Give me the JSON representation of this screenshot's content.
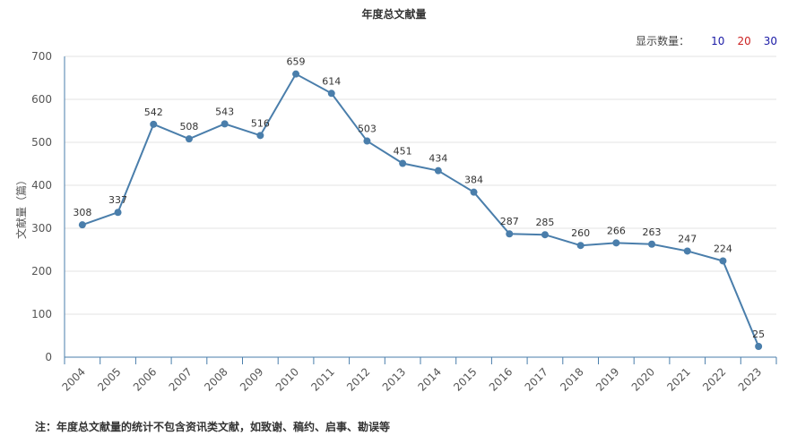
{
  "title": "年度总文献量",
  "count_selector": {
    "label": "显示数量：",
    "options": [
      {
        "label": "10",
        "color": "#1a1aa6"
      },
      {
        "label": "20",
        "color": "#cc2222"
      },
      {
        "label": "30",
        "color": "#1a1aa6"
      }
    ]
  },
  "note": "注：年度总文献量的统计不包含资讯类文献，如致谢、稿约、启事、勘误等",
  "chart_data": {
    "type": "line",
    "title": "年度总文献量",
    "xlabel": "",
    "ylabel": "文献量（篇）",
    "ylim": [
      0,
      700
    ],
    "yticks": [
      0,
      100,
      200,
      300,
      400,
      500,
      600,
      700
    ],
    "grid": true,
    "line_color": "#4a7eab",
    "x": [
      "2004",
      "2005",
      "2006",
      "2007",
      "2008",
      "2009",
      "2010",
      "2011",
      "2012",
      "2013",
      "2014",
      "2015",
      "2016",
      "2017",
      "2018",
      "2019",
      "2020",
      "2021",
      "2022",
      "2023"
    ],
    "values": [
      308,
      337,
      542,
      508,
      543,
      516,
      659,
      614,
      503,
      451,
      434,
      384,
      287,
      285,
      260,
      266,
      263,
      247,
      224,
      25
    ]
  }
}
